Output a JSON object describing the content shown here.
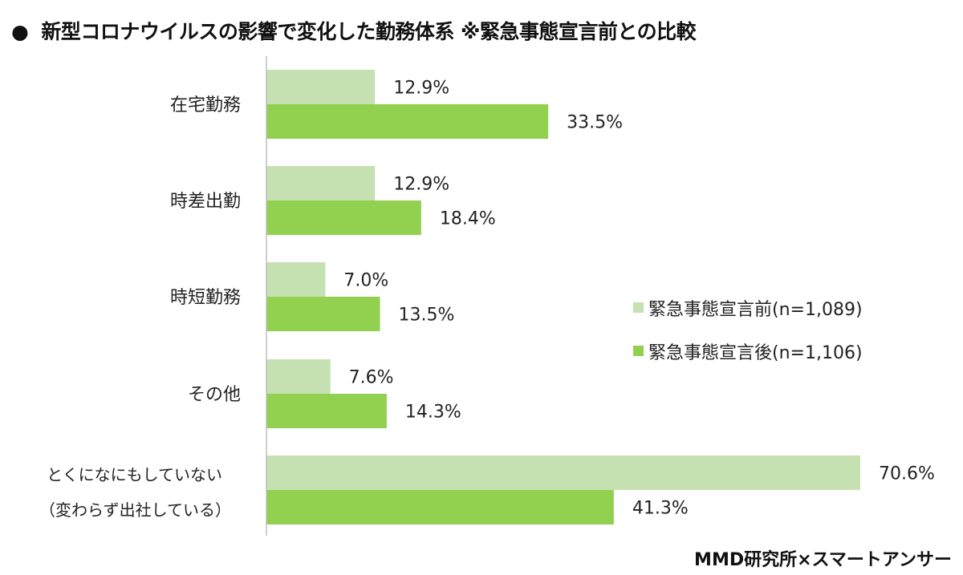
{
  "title": {
    "bullet": "●",
    "text": "新型コロナウイルスの影響で変化した勤務体系 ※緊急事態宣言前との比較"
  },
  "source": "MMD研究所×スマートアンサー",
  "colors": {
    "before": "#c5e1b1",
    "after": "#92d050",
    "axis": "#bfbfbf"
  },
  "chart_data": {
    "type": "bar",
    "orientation": "horizontal",
    "categories": [
      [
        "在宅勤務"
      ],
      [
        "時差出勤"
      ],
      [
        "時短勤務"
      ],
      [
        "その他"
      ],
      [
        "とくになにもしていない",
        "（変わらず出社している）"
      ]
    ],
    "series": [
      {
        "name": "緊急事態宣言前(n=1,089)",
        "values": [
          12.9,
          12.9,
          7.0,
          7.6,
          70.6
        ],
        "labels": [
          "12.9%",
          "12.9%",
          "7.0%",
          "7.6%",
          "70.6%"
        ]
      },
      {
        "name": "緊急事態宣言後(n=1,106)",
        "values": [
          33.5,
          18.4,
          13.5,
          14.3,
          41.3
        ],
        "labels": [
          "33.5%",
          "18.4%",
          "13.5%",
          "14.3%",
          "41.3%"
        ]
      }
    ],
    "xlim": [
      0,
      80
    ],
    "grid": false,
    "legend_position": "right"
  }
}
